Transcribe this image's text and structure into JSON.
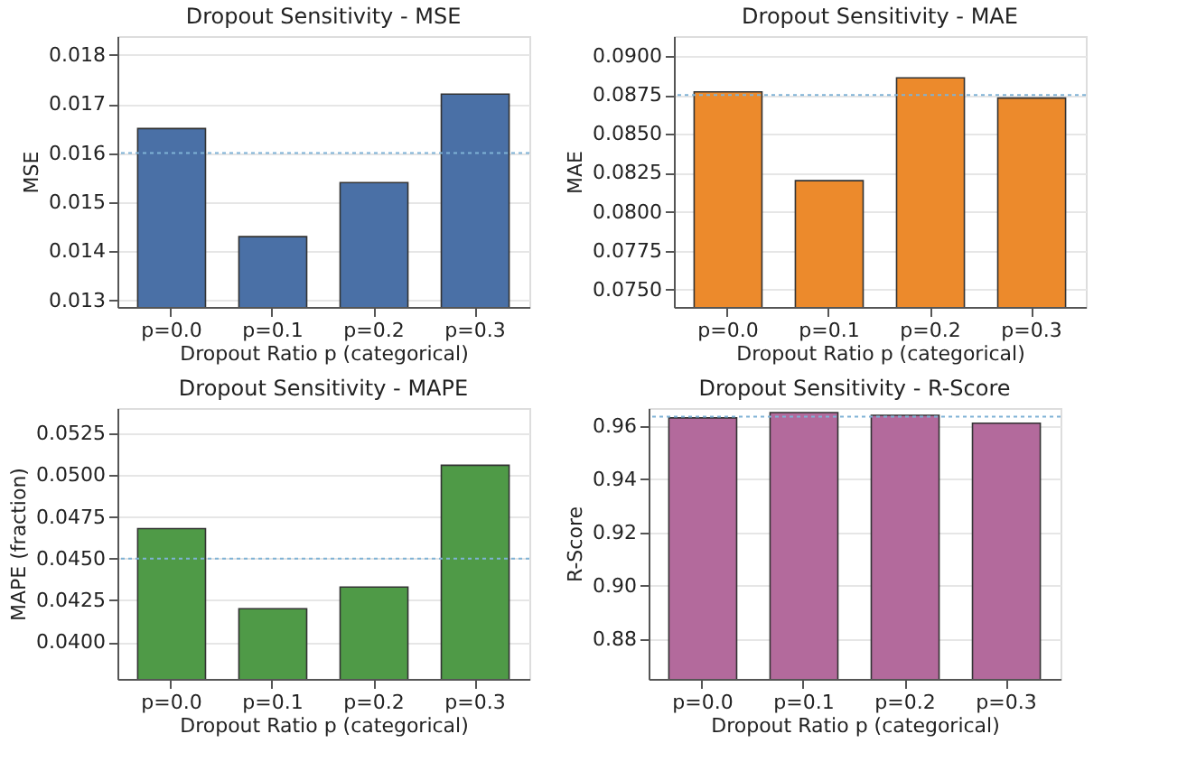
{
  "chart_data": [
    {
      "type": "bar",
      "title": "Dropout Sensitivity - MSE",
      "xlabel": "Dropout Ratio p (categorical)",
      "ylabel": "MSE",
      "categories": [
        "p=0.0",
        "p=0.1",
        "p=0.2",
        "p=0.3"
      ],
      "values": [
        0.0165,
        0.0143,
        0.0154,
        0.0172
      ],
      "color": "#4a70a6",
      "ylim": [
        0.01287,
        0.01838
      ],
      "yticks": [
        0.013,
        0.014,
        0.015,
        0.016,
        0.017,
        0.018
      ],
      "grid": "y",
      "ref_lines": [
        {
          "axis": "y",
          "value": 0.016,
          "color": "#7fb2d6",
          "line_style": "dotted"
        }
      ]
    },
    {
      "type": "bar",
      "title": "Dropout Sensitivity - MAE",
      "xlabel": "Dropout Ratio p (categorical)",
      "ylabel": "MAE",
      "categories": [
        "p=0.0",
        "p=0.1",
        "p=0.2",
        "p=0.3"
      ],
      "values": [
        0.0877,
        0.082,
        0.0886,
        0.0873
      ],
      "color": "#ec8a2c",
      "ylim": [
        0.07389,
        0.09128
      ],
      "yticks": [
        {
          "value": 0.075,
          "label": "0.0750"
        },
        {
          "value": 0.0775,
          "label": "0.0775"
        },
        {
          "value": 0.08,
          "label": "0.0800"
        },
        {
          "value": 0.0825,
          "label": "0.0825"
        },
        {
          "value": 0.085,
          "label": "0.0850"
        },
        {
          "value": 0.0875,
          "label": "0.0875"
        },
        {
          "value": 0.09,
          "label": "0.0900"
        }
      ],
      "grid": "y",
      "ref_lines": [
        {
          "axis": "y",
          "value": 0.0875,
          "color": "#7fb2d6",
          "line_style": "dotted"
        }
      ]
    },
    {
      "type": "bar",
      "title": "Dropout Sensitivity - MAPE",
      "xlabel": "Dropout Ratio p (categorical)",
      "ylabel": "MAPE (fraction)",
      "categories": [
        "p=0.0",
        "p=0.1",
        "p=0.2",
        "p=0.3"
      ],
      "values": [
        0.0468,
        0.042,
        0.0433,
        0.0506
      ],
      "color": "#4f9a47",
      "ylim": [
        0.03779,
        0.05403
      ],
      "yticks": [
        {
          "value": 0.04,
          "label": "0.0400"
        },
        {
          "value": 0.0425,
          "label": "0.0425"
        },
        {
          "value": 0.045,
          "label": "0.0450"
        },
        {
          "value": 0.0475,
          "label": "0.0475"
        },
        {
          "value": 0.05,
          "label": "0.0500"
        },
        {
          "value": 0.0525,
          "label": "0.0525"
        }
      ],
      "grid": "y",
      "ref_lines": [
        {
          "axis": "y",
          "value": 0.045,
          "color": "#7fb2d6",
          "line_style": "dotted"
        }
      ]
    },
    {
      "type": "bar",
      "title": "Dropout Sensitivity - R-Score",
      "xlabel": "Dropout Ratio p (categorical)",
      "ylabel": "R-Score",
      "categories": [
        "p=0.0",
        "p=0.1",
        "p=0.2",
        "p=0.3"
      ],
      "values": [
        0.963,
        0.965,
        0.964,
        0.961
      ],
      "color": "#b36a9c",
      "ylim": [
        0.8649,
        0.9667
      ],
      "yticks": [
        {
          "value": 0.88,
          "label": "0.88"
        },
        {
          "value": 0.9,
          "label": "0.90"
        },
        {
          "value": 0.92,
          "label": "0.92"
        },
        {
          "value": 0.94,
          "label": "0.94"
        },
        {
          "value": 0.96,
          "label": "0.96"
        }
      ],
      "grid": "y",
      "ref_lines": [
        {
          "axis": "y",
          "value": 0.9635,
          "color": "#7fb2d6",
          "line_style": "dotted"
        }
      ]
    }
  ]
}
